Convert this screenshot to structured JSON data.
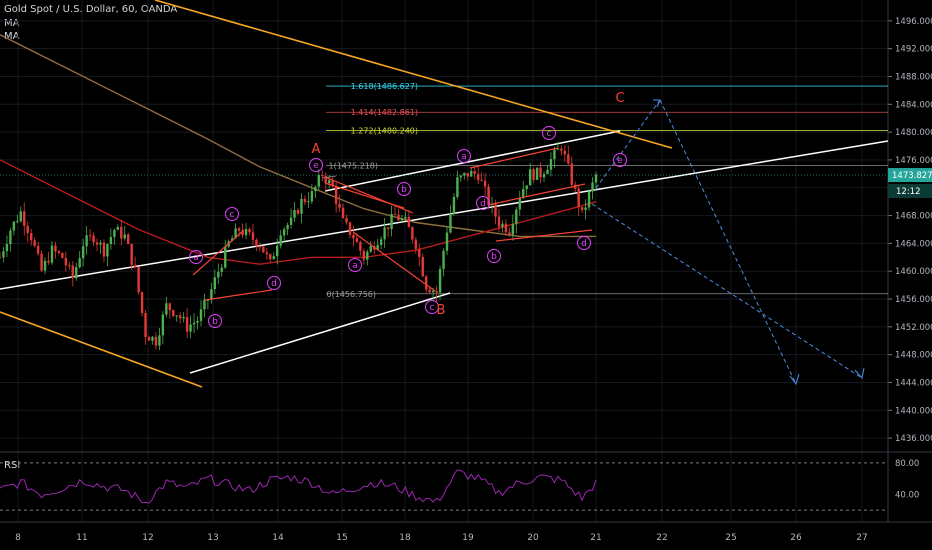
{
  "header": {
    "title": "Gold Spot / U.S. Dollar, 60, OANDA",
    "indicators": [
      "MA",
      "MA"
    ]
  },
  "price_axis": {
    "ticks": [
      "1496.000",
      "1492.000",
      "1488.000",
      "1484.000",
      "1480.000",
      "1476.000",
      "1472.000",
      "1468.000",
      "1464.000",
      "1460.000",
      "1456.000",
      "1452.000",
      "1448.000",
      "1444.000",
      "1440.000",
      "1436.000"
    ],
    "last_price": "1473.827",
    "countdown": "12:12"
  },
  "rsi": {
    "label": "RSI",
    "ticks": [
      "80.00",
      "40.00"
    ]
  },
  "time_axis": {
    "labels": [
      "8",
      "11",
      "12",
      "13",
      "14",
      "15",
      "18",
      "19",
      "20",
      "21",
      "22",
      "25",
      "26",
      "27"
    ]
  },
  "fibonacci": [
    {
      "label": "1.618(1486.627)",
      "value": 1486.627,
      "color": "#38d9f0"
    },
    {
      "label": "1.414(1482.861)",
      "value": 1482.861,
      "color": "#f05252"
    },
    {
      "label": "1.272(1480.240)",
      "value": 1480.24,
      "color": "#cddc39"
    },
    {
      "label": "1(1475.218)",
      "value": 1475.218,
      "color": "#9e9e9e"
    },
    {
      "label": "0(1456.756)",
      "value": 1456.756,
      "color": "#9e9e9e"
    }
  ],
  "wave_labels": {
    "major": [
      "A",
      "B",
      "C"
    ],
    "minor": [
      "a",
      "b",
      "c",
      "d",
      "e",
      "a",
      "b",
      "c",
      "d",
      "e",
      "a",
      "b",
      "c",
      "d",
      "e"
    ]
  },
  "colors": {
    "background": "#000000",
    "candle_up": "#4caf50",
    "candle_down": "#e53935",
    "channel": "#ffffff",
    "downtrend": "#f5a623",
    "ma_fast": "#b71c1c",
    "ma_slow": "#8d6e3c",
    "rsi_line": "#9c27b0",
    "projection": "#4a90e2",
    "wave_circle": "#e040fb",
    "wave_major": "#f44336",
    "price_tag": "#26a69a"
  },
  "chart_data": {
    "type": "candlestick",
    "title": "Gold Spot / U.S. Dollar, 60, OANDA",
    "ylim": [
      1434,
      1499
    ],
    "rsi_ylim": [
      10,
      90
    ],
    "x_range_candles": [
      0,
      172
    ],
    "price_path": [
      [
        0,
        1462
      ],
      [
        3,
        1466
      ],
      [
        6,
        1468.5
      ],
      [
        9,
        1465
      ],
      [
        12,
        1460
      ],
      [
        15,
        1463
      ],
      [
        18,
        1462
      ],
      [
        21,
        1459
      ],
      [
        24,
        1464
      ],
      [
        27,
        1465
      ],
      [
        30,
        1463
      ],
      [
        33,
        1466
      ],
      [
        36,
        1465
      ],
      [
        39,
        1460
      ],
      [
        42,
        1451
      ],
      [
        45,
        1450
      ],
      [
        48,
        1455
      ],
      [
        51,
        1454
      ],
      [
        54,
        1452
      ],
      [
        57,
        1453
      ],
      [
        60,
        1456
      ],
      [
        63,
        1460
      ],
      [
        66,
        1464
      ],
      [
        69,
        1466
      ],
      [
        72,
        1465
      ],
      [
        75,
        1464
      ],
      [
        78,
        1461
      ],
      [
        81,
        1466
      ],
      [
        84,
        1467
      ],
      [
        87,
        1470
      ],
      [
        90,
        1471
      ],
      [
        93,
        1474
      ],
      [
        96,
        1472
      ],
      [
        99,
        1467
      ],
      [
        102,
        1465
      ],
      [
        105,
        1462
      ],
      [
        108,
        1464
      ],
      [
        111,
        1466
      ],
      [
        114,
        1468
      ],
      [
        117,
        1467
      ],
      [
        120,
        1464
      ],
      [
        123,
        1458
      ],
      [
        126,
        1457
      ],
      [
        129,
        1466
      ],
      [
        132,
        1473
      ],
      [
        135,
        1474
      ],
      [
        138,
        1474
      ],
      [
        141,
        1470
      ],
      [
        144,
        1467
      ],
      [
        147,
        1466
      ],
      [
        150,
        1471
      ],
      [
        153,
        1474
      ],
      [
        156,
        1474
      ],
      [
        159,
        1476
      ],
      [
        162,
        1478
      ],
      [
        165,
        1473
      ],
      [
        168,
        1468
      ],
      [
        170,
        1471
      ],
      [
        172,
        1473.8
      ]
    ],
    "rsi_path": [
      [
        0,
        45
      ],
      [
        6,
        55
      ],
      [
        12,
        40
      ],
      [
        18,
        48
      ],
      [
        24,
        58
      ],
      [
        30,
        50
      ],
      [
        36,
        45
      ],
      [
        42,
        30
      ],
      [
        48,
        55
      ],
      [
        54,
        48
      ],
      [
        60,
        60
      ],
      [
        66,
        52
      ],
      [
        72,
        45
      ],
      [
        78,
        58
      ],
      [
        84,
        62
      ],
      [
        90,
        55
      ],
      [
        96,
        40
      ],
      [
        102,
        48
      ],
      [
        108,
        55
      ],
      [
        114,
        50
      ],
      [
        120,
        38
      ],
      [
        126,
        30
      ],
      [
        132,
        68
      ],
      [
        138,
        60
      ],
      [
        144,
        42
      ],
      [
        150,
        55
      ],
      [
        156,
        62
      ],
      [
        162,
        58
      ],
      [
        168,
        35
      ],
      [
        172,
        55
      ]
    ],
    "ma_fast": [
      [
        0,
        1476
      ],
      [
        20,
        1471
      ],
      [
        40,
        1466
      ],
      [
        60,
        1462
      ],
      [
        75,
        1461
      ],
      [
        90,
        1462
      ],
      [
        105,
        1462
      ],
      [
        120,
        1463
      ],
      [
        135,
        1465
      ],
      [
        150,
        1467
      ],
      [
        165,
        1469
      ],
      [
        172,
        1470
      ]
    ],
    "ma_slow": [
      [
        0,
        1494
      ],
      [
        20,
        1489
      ],
      [
        40,
        1484
      ],
      [
        60,
        1479
      ],
      [
        75,
        1475
      ],
      [
        90,
        1472
      ],
      [
        105,
        1469
      ],
      [
        120,
        1467
      ],
      [
        135,
        1466
      ],
      [
        150,
        1465
      ],
      [
        165,
        1465
      ],
      [
        172,
        1465
      ]
    ]
  }
}
